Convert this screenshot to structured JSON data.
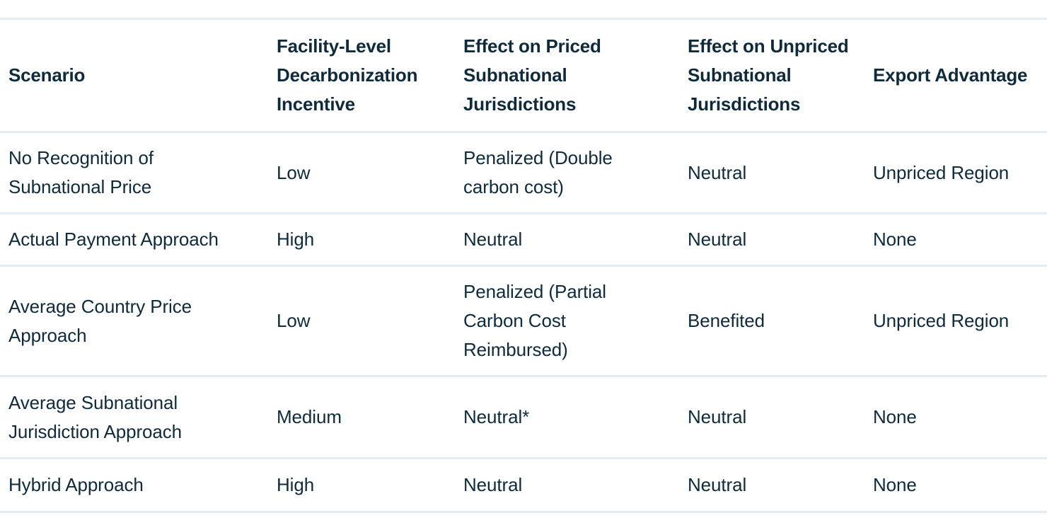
{
  "table": {
    "headers": [
      "Scenario",
      "Facility-Level Decarbonization Incentive",
      "Effect on Priced Subnational Jurisdictions",
      "Effect on Unpriced Subnational Jurisdictions",
      "Export Advantage"
    ],
    "rows": [
      [
        "No Recognition of Subnational Price",
        "Low",
        "Penalized (Double carbon cost)",
        "Neutral",
        "Unpriced Region"
      ],
      [
        "Actual Payment Approach",
        "High",
        "Neutral",
        "Neutral",
        "None"
      ],
      [
        "Average Country Price Approach",
        "Low",
        "Penalized (Partial Carbon Cost Reimbursed)",
        "Benefited",
        "Unpriced Region"
      ],
      [
        "Average Subnational Jurisdiction Approach",
        "Medium",
        "Neutral*",
        "Neutral",
        "None"
      ],
      [
        "Hybrid Approach",
        "High",
        "Neutral",
        "Neutral",
        "None"
      ]
    ]
  }
}
